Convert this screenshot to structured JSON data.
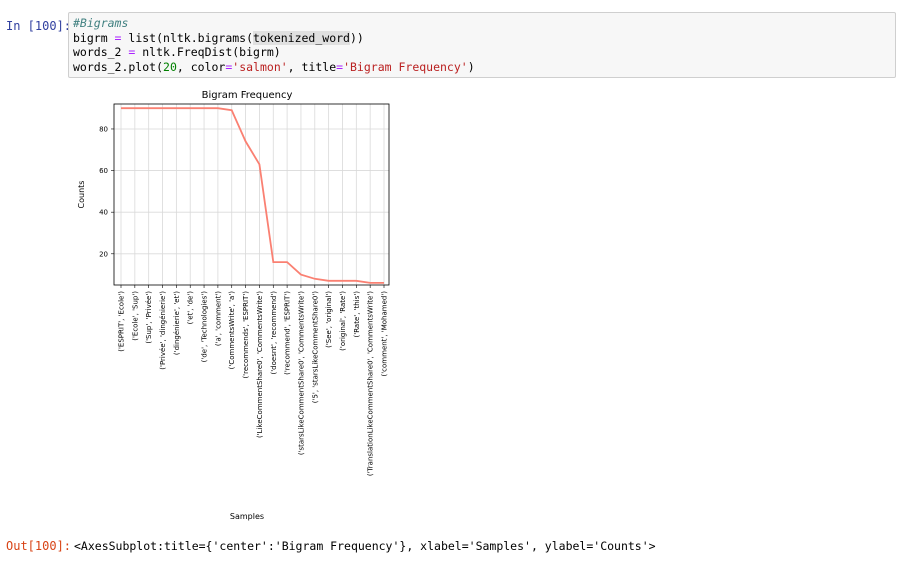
{
  "notebook": {
    "in_prompt": "In [100]:",
    "code": {
      "line1_comment": "#Bigrams",
      "line2_a": "bigrm ",
      "line2_op": "=",
      "line2_b": " list(nltk.bigrams(",
      "line2_hl": "tokenized_word",
      "line2_c": "))",
      "line3_a": "words_2 ",
      "line3_op": "=",
      "line3_b": " nltk.FreqDist(bigrm)",
      "line4_a": "words_2.plot(",
      "line4_num": "20",
      "line4_b": ", color",
      "line4_op1": "=",
      "line4_str1": "'salmon'",
      "line4_c": ", title",
      "line4_op2": "=",
      "line4_str2": "'Bigram Frequency'",
      "line4_d": ")"
    },
    "out_prompt": "Out[100]:",
    "out_text": "<AxesSubplot:title={'center':'Bigram Frequency'}, xlabel='Samples', ylabel='Counts'>"
  },
  "chart_data": {
    "type": "line",
    "title": "Bigram Frequency",
    "xlabel": "Samples",
    "ylabel": "Counts",
    "color": "#fa8072",
    "grid": true,
    "ylim": [
      5,
      92
    ],
    "yticks": [
      20,
      40,
      60,
      80
    ],
    "categories": [
      "('ESPRIT', 'Ecole')",
      "('Ecole', 'Sup')",
      "('Sup', 'Privée')",
      "('Privée', 'dingénierie')",
      "('dingénierie', 'et')",
      "('et', 'de')",
      "('de', 'Technologies')",
      "('a', 'comment')",
      "('CommentsWrite', 'a')",
      "('recommends', 'ESPRIT')",
      "('LikeCommentShare0', 'CommentsWrite')",
      "('doesnt', 'recommend')",
      "('recommend', 'ESPRIT')",
      "('starsLikeCommentShare0', 'CommentsWrite')",
      "('5', 'starsLikeCommentShare0')",
      "('See', 'original')",
      "('original', 'Rate')",
      "('Rate', 'this')",
      "('TranslationLikeCommentShare0', 'CommentsWrite')",
      "('comment', 'Mohamed')"
    ],
    "values": [
      90,
      90,
      90,
      90,
      90,
      90,
      90,
      90,
      89,
      74,
      63,
      16,
      16,
      10,
      8,
      7,
      7,
      7,
      6,
      6
    ]
  }
}
